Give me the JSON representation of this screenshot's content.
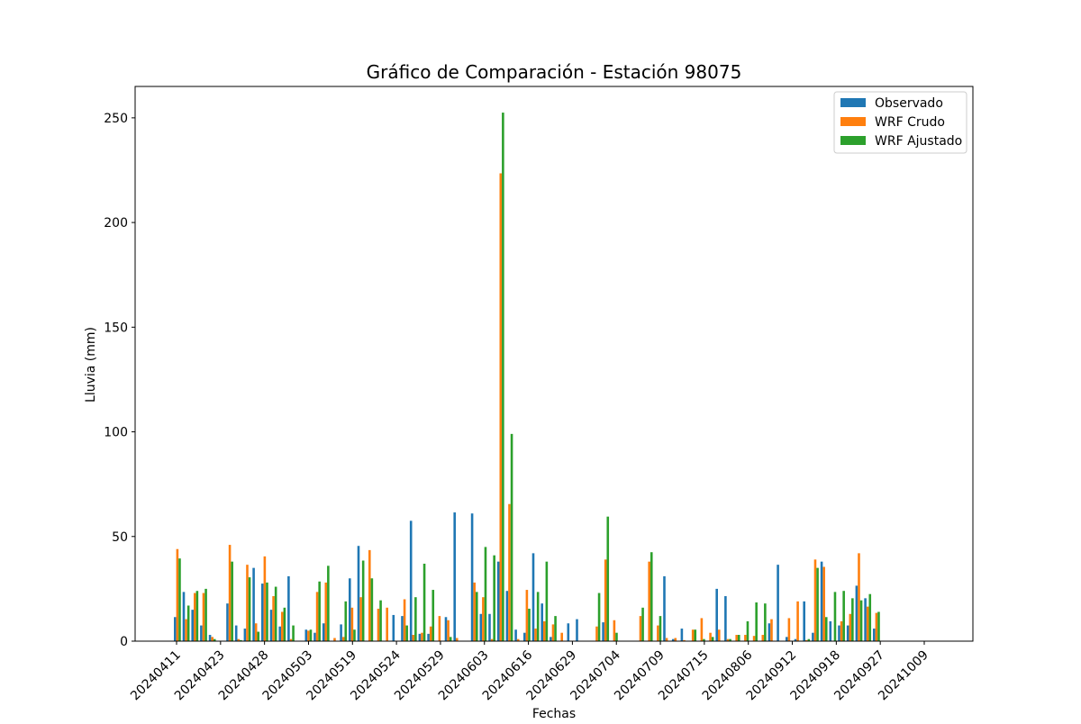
{
  "chart_data": {
    "type": "bar",
    "title": "Gráfico de Comparación - Estación 98075",
    "xlabel": "Fechas",
    "ylabel": "Lluvia (mm)",
    "ylim": [
      0,
      265
    ],
    "yticks": [
      0,
      50,
      100,
      150,
      200,
      250
    ],
    "xtick_labels": [
      "20240411",
      "20240423",
      "20240428",
      "20240503",
      "20240519",
      "20240524",
      "20240529",
      "20240603",
      "20240616",
      "20240629",
      "20240704",
      "20240709",
      "20240715",
      "20240806",
      "20240912",
      "20240918",
      "20240927",
      "20241009"
    ],
    "legend_position": "upper right",
    "grid": false,
    "series": [
      {
        "name": "Observado",
        "color": "#1f77b4",
        "values": [
          11.5,
          23.5,
          15.0,
          7.5,
          3.0,
          0.0,
          18.0,
          7.5,
          6.0,
          35.0,
          27.5,
          15.0,
          7.0,
          31.0,
          0.0,
          5.5,
          4.0,
          8.5,
          0.0,
          8.0,
          30.0,
          45.5,
          0.0,
          0.0,
          0.0,
          12.5,
          12.0,
          57.5,
          3.5,
          3.5,
          0.0,
          11.5,
          61.5,
          0.0,
          61.0,
          13.0,
          13.0,
          38.0,
          24.0,
          5.5,
          4.0,
          42.0,
          18.0,
          2.0,
          0.0,
          8.5,
          10.5,
          0.0,
          0.0,
          9.0,
          0.0,
          0.0,
          0.0,
          0.0,
          0.0,
          0.0,
          31.0,
          1.0,
          6.0,
          0.0,
          0.0,
          0.0,
          25.0,
          21.5,
          0.0,
          0.0,
          0.0,
          0.0,
          8.5,
          36.5,
          2.0,
          1.0,
          19.0,
          4.0,
          38.0,
          9.5,
          7.5,
          7.5,
          26.5,
          20.5,
          6.0
        ]
      },
      {
        "name": "WRF Crudo",
        "color": "#ff7f0e",
        "values": [
          44.0,
          10.5,
          23.0,
          23.0,
          2.0,
          0.0,
          46.0,
          1.0,
          36.5,
          8.5,
          40.5,
          21.5,
          14.0,
          1.0,
          0.0,
          5.0,
          23.5,
          28.0,
          1.5,
          2.0,
          16.0,
          21.0,
          43.5,
          15.5,
          16.0,
          0.0,
          20.0,
          3.0,
          4.0,
          7.0,
          12.0,
          10.0,
          1.5,
          0.0,
          28.0,
          21.0,
          1.0,
          223.5,
          65.5,
          1.0,
          24.5,
          6.0,
          9.5,
          8.0,
          4.0,
          0.0,
          0.0,
          0.0,
          7.0,
          39.0,
          10.0,
          0.0,
          0.0,
          12.0,
          38.0,
          7.5,
          1.5,
          1.5,
          0.5,
          5.5,
          11.0,
          4.0,
          5.5,
          1.0,
          3.0,
          3.0,
          2.5,
          3.0,
          10.5,
          0.0,
          11.0,
          19.0,
          0.5,
          39.0,
          35.5,
          0.0,
          9.5,
          13.0,
          42.0,
          16.5,
          13.5
        ]
      },
      {
        "name": "WRF Ajustado",
        "color": "#2ca02c",
        "values": [
          39.5,
          17.0,
          24.0,
          25.0,
          1.0,
          0.0,
          38.0,
          0.5,
          30.5,
          4.5,
          28.0,
          26.0,
          16.0,
          7.5,
          0.0,
          5.5,
          28.5,
          36.0,
          0.0,
          19.0,
          5.5,
          38.5,
          30.0,
          19.5,
          0.0,
          0.0,
          7.5,
          21.0,
          37.0,
          24.5,
          0.0,
          2.0,
          0.0,
          0.0,
          23.5,
          45.0,
          41.0,
          252.5,
          99.0,
          0.0,
          15.5,
          23.5,
          38.0,
          12.0,
          0.0,
          0.0,
          0.0,
          0.0,
          23.0,
          59.5,
          4.0,
          0.0,
          0.0,
          16.0,
          42.5,
          12.0,
          0.0,
          0.0,
          0.0,
          5.5,
          1.0,
          2.0,
          0.0,
          1.0,
          3.0,
          9.5,
          18.5,
          18.0,
          0.0,
          0.0,
          0.0,
          0.0,
          1.0,
          35.0,
          11.5,
          23.5,
          24.0,
          20.5,
          19.5,
          22.5,
          14.0
        ]
      }
    ]
  }
}
